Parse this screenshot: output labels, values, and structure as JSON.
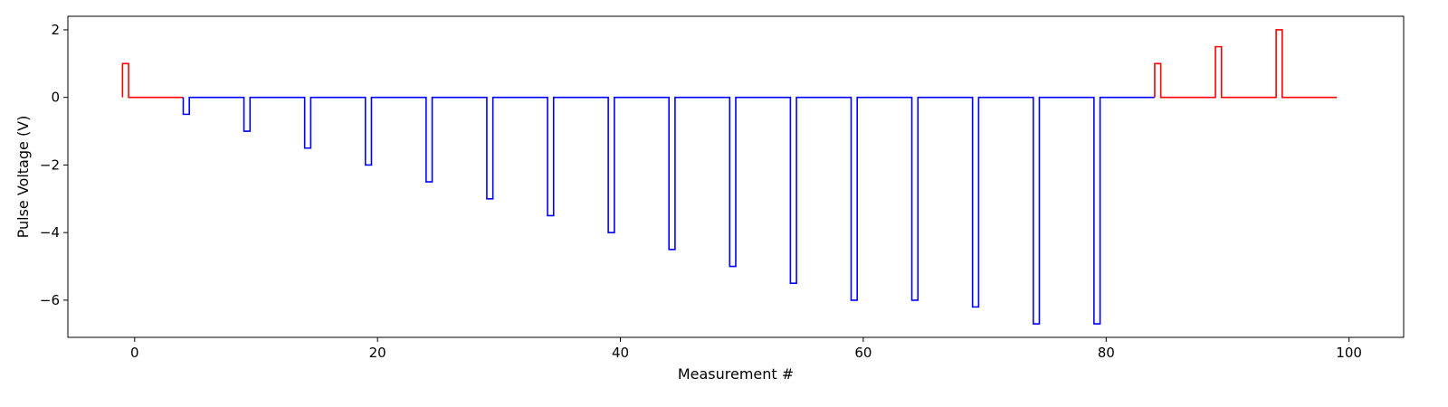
{
  "chart_data": {
    "type": "line",
    "title": "",
    "xlabel": "Measurement #",
    "ylabel": "Pulse Voltage (V)",
    "xlim": [
      -5.5,
      104.5
    ],
    "ylim": [
      -7.1,
      2.4
    ],
    "xticks": [
      0,
      20,
      40,
      60,
      80,
      100
    ],
    "yticks": [
      -6,
      -4,
      -2,
      0,
      2
    ],
    "grid": false,
    "legend": "none",
    "series": [
      {
        "color": "#ff0000",
        "style": "step",
        "pulse_width": 0.5,
        "start": -1,
        "end": 4,
        "pulses": [
          [
            -1,
            1.0
          ]
        ]
      },
      {
        "color": "#0000ff",
        "style": "step",
        "pulse_width": 0.5,
        "start": 4,
        "end": 84,
        "pulses": [
          [
            4,
            -0.5
          ],
          [
            9,
            -1.0
          ],
          [
            14,
            -1.5
          ],
          [
            19,
            -2.0
          ],
          [
            24,
            -2.5
          ],
          [
            29,
            -3.0
          ],
          [
            34,
            -3.5
          ],
          [
            39,
            -4.0
          ],
          [
            44,
            -4.5
          ],
          [
            49,
            -5.0
          ],
          [
            54,
            -5.5
          ],
          [
            59,
            -6.0
          ],
          [
            64,
            -6.0
          ],
          [
            69,
            -6.2
          ],
          [
            74,
            -6.7
          ],
          [
            79,
            -6.7
          ]
        ]
      },
      {
        "color": "#ff0000",
        "style": "step",
        "pulse_width": 0.5,
        "start": 84,
        "end": 99,
        "pulses": [
          [
            84,
            1.0
          ],
          [
            89,
            1.5
          ],
          [
            94,
            2.0
          ]
        ]
      }
    ]
  }
}
